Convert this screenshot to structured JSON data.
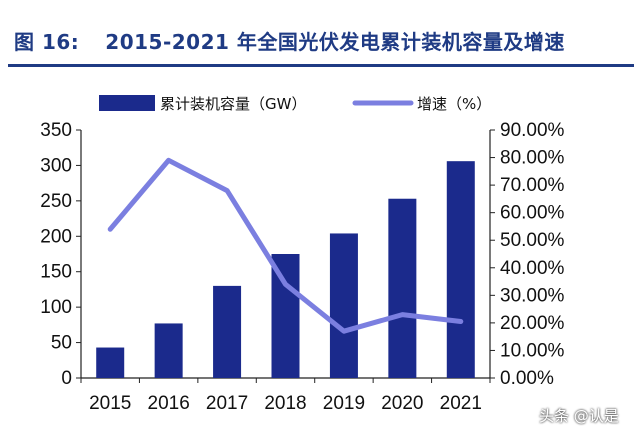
{
  "figure": {
    "number": "图 16:",
    "title": "2015-2021 年全国光伏发电累计装机容量及增速"
  },
  "watermark": "头条 @认是",
  "chart_data": {
    "type": "bar",
    "categories": [
      "2015",
      "2016",
      "2017",
      "2018",
      "2019",
      "2020",
      "2021"
    ],
    "series": [
      {
        "name": "累计装机容量（GW）",
        "type": "bar",
        "axis": "left",
        "values": [
          43,
          77,
          130,
          175,
          204,
          253,
          306
        ]
      },
      {
        "name": "增速（%）",
        "type": "line",
        "axis": "right",
        "values": [
          0.54,
          0.79,
          0.68,
          0.34,
          0.17,
          0.23,
          0.205
        ]
      }
    ],
    "y_left": {
      "lim": [
        0,
        350
      ],
      "ticks": [
        0,
        50,
        100,
        150,
        200,
        250,
        300,
        350
      ],
      "tick_labels": [
        "0",
        "50",
        "100",
        "150",
        "200",
        "250",
        "300",
        "350"
      ]
    },
    "y_right": {
      "lim": [
        0,
        0.9
      ],
      "ticks": [
        0,
        0.1,
        0.2,
        0.3,
        0.4,
        0.5,
        0.6,
        0.7,
        0.8,
        0.9
      ],
      "tick_labels": [
        "0.00%",
        "10.00%",
        "20.00%",
        "30.00%",
        "40.00%",
        "50.00%",
        "60.00%",
        "70.00%",
        "80.00%",
        "90.00%"
      ]
    },
    "legend_position": "top",
    "grid": false,
    "colors": {
      "bar": "#1b2a8c",
      "line": "#7b7fe0",
      "title": "#1f3b84"
    }
  }
}
